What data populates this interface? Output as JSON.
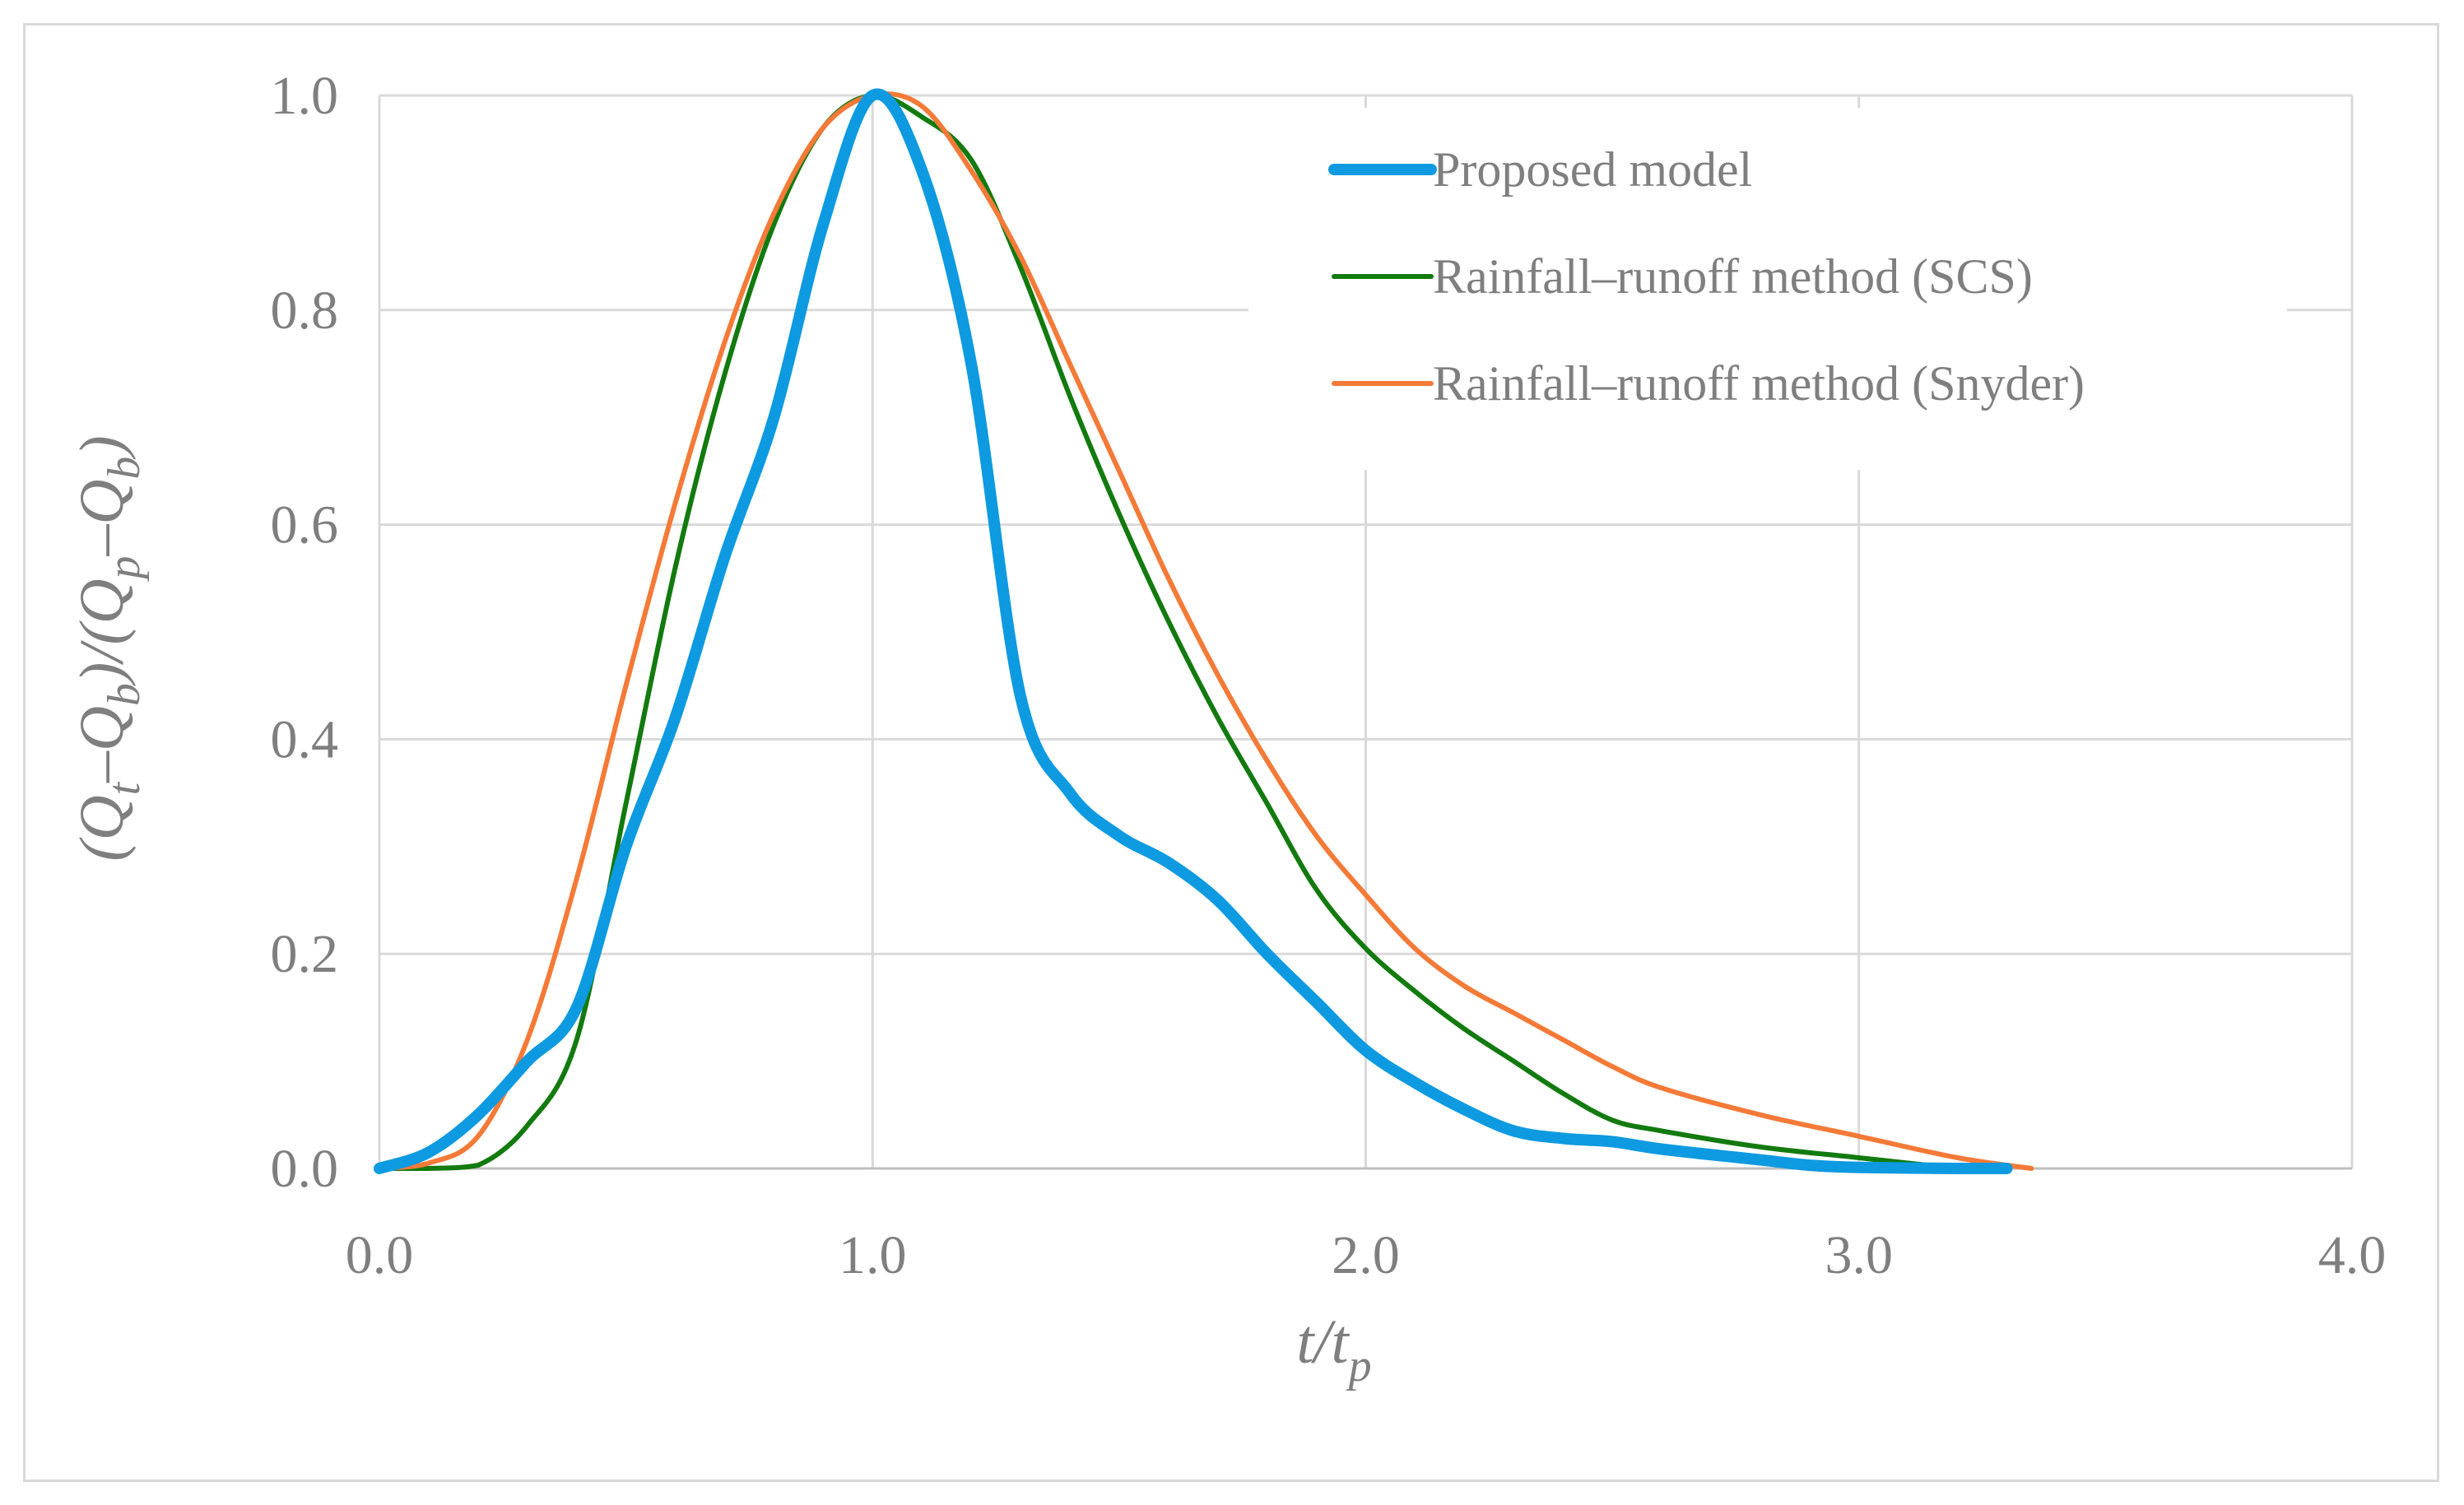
{
  "chart_data": {
    "type": "line",
    "title": "",
    "xlabel": {
      "base": "t/t",
      "sub": "p"
    },
    "ylabel": {
      "parts": [
        "(Q",
        "t",
        "–Q",
        "b",
        ")/(Q",
        "p",
        "–Q",
        "b",
        ")"
      ]
    },
    "xlim": [
      0,
      4
    ],
    "ylim": [
      0,
      1
    ],
    "x_ticks": [
      0,
      1,
      2,
      3,
      4
    ],
    "x_tick_labels": [
      "0.0",
      "1.0",
      "2.0",
      "3.0",
      "4.0"
    ],
    "y_ticks": [
      0,
      0.2,
      0.4,
      0.6,
      0.8,
      1.0
    ],
    "y_tick_labels": [
      "0.0",
      "0.2",
      "0.4",
      "0.6",
      "0.8",
      "1.0"
    ],
    "grid": true,
    "legend_position": "top-right",
    "series": [
      {
        "name": "Proposed model",
        "color": "#0e9ae0",
        "line_weight": "heavy",
        "x": [
          0.0,
          0.1,
          0.2,
          0.3,
          0.4,
          0.5,
          0.6,
          0.7,
          0.8,
          0.9,
          1.0,
          1.1,
          1.2,
          1.3,
          1.4,
          1.5,
          1.6,
          1.7,
          1.8,
          1.9,
          2.0,
          2.1,
          2.2,
          2.3,
          2.4,
          2.5,
          2.6,
          2.8,
          2.9,
          3.0,
          3.2,
          3.3
        ],
        "y": [
          0.0,
          0.015,
          0.05,
          0.1,
          0.15,
          0.3,
          0.42,
          0.57,
          0.7,
          0.88,
          1.0,
          0.93,
          0.75,
          0.44,
          0.35,
          0.31,
          0.285,
          0.25,
          0.2,
          0.155,
          0.11,
          0.08,
          0.055,
          0.035,
          0.028,
          0.025,
          0.018,
          0.008,
          0.003,
          0.001,
          0.0,
          0.0
        ]
      },
      {
        "name": "Rainfall–runoff method (SCS)",
        "color": "#127a0f",
        "line_weight": "thin",
        "x": [
          0.0,
          0.1,
          0.2,
          0.3,
          0.4,
          0.5,
          0.6,
          0.7,
          0.8,
          0.9,
          1.0,
          1.1,
          1.2,
          1.3,
          1.4,
          1.5,
          1.6,
          1.7,
          1.8,
          1.9,
          2.0,
          2.1,
          2.2,
          2.3,
          2.4,
          2.5,
          2.6,
          2.8,
          3.0,
          3.2
        ],
        "y": [
          0.0,
          0.0,
          0.003,
          0.04,
          0.12,
          0.34,
          0.56,
          0.74,
          0.88,
          0.97,
          1.0,
          0.98,
          0.94,
          0.84,
          0.72,
          0.61,
          0.51,
          0.42,
          0.34,
          0.26,
          0.205,
          0.165,
          0.13,
          0.1,
          0.07,
          0.045,
          0.035,
          0.02,
          0.01,
          0.0
        ]
      },
      {
        "name": "Rainfall–runoff method (Snyder)",
        "color": "#f47a38",
        "line_weight": "thin",
        "x": [
          0.0,
          0.1,
          0.2,
          0.3,
          0.4,
          0.5,
          0.6,
          0.7,
          0.8,
          0.9,
          1.0,
          1.1,
          1.2,
          1.3,
          1.4,
          1.5,
          1.6,
          1.7,
          1.8,
          1.9,
          2.0,
          2.1,
          2.2,
          2.3,
          2.4,
          2.5,
          2.6,
          2.8,
          3.0,
          3.2,
          3.35
        ],
        "y": [
          0.0,
          0.005,
          0.03,
          0.12,
          0.27,
          0.45,
          0.62,
          0.77,
          0.89,
          0.97,
          1.0,
          0.99,
          0.93,
          0.85,
          0.75,
          0.65,
          0.55,
          0.46,
          0.38,
          0.31,
          0.255,
          0.205,
          0.17,
          0.145,
          0.12,
          0.095,
          0.075,
          0.05,
          0.03,
          0.01,
          0.0
        ]
      }
    ]
  }
}
